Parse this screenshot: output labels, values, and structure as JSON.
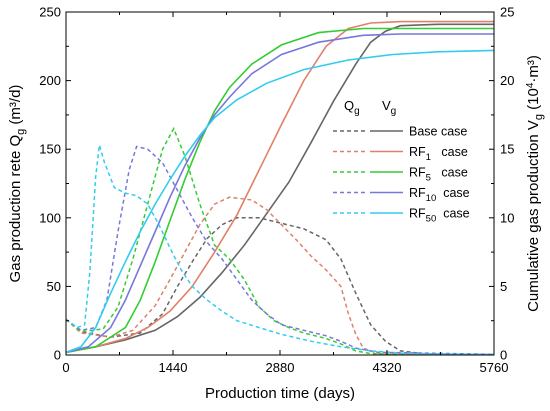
{
  "chart_data": {
    "type": "line",
    "xlabel": "Production time (days)",
    "ylabel_left": {
      "text": "Gas production rete Q",
      "sub": "g",
      "unit": " (m³/d)"
    },
    "ylabel_right": {
      "text": "Cumulative gas production V",
      "sub": "g",
      "unit_pre": " (10",
      "unit_sup": "4",
      "unit_post": "·m³)"
    },
    "xlim": [
      0,
      5760
    ],
    "ylim_left": [
      0,
      250
    ],
    "ylim_right": [
      0,
      25
    ],
    "x_ticks": [
      0,
      1440,
      2880,
      4320,
      5760
    ],
    "y_ticks_left": [
      0,
      50,
      100,
      150,
      200,
      250
    ],
    "y_ticks_right": [
      0,
      5,
      10,
      15,
      20,
      25
    ],
    "legend": {
      "header_q": {
        "main": "Q",
        "sub": "g"
      },
      "header_v": {
        "main": "V",
        "sub": "g"
      },
      "position": "right-middle"
    },
    "series": [
      {
        "name": "Base case",
        "label_main": "Base case",
        "label_sub": "",
        "label_suffix": "",
        "color": "#666666",
        "rate": [
          [
            0,
            26
          ],
          [
            200,
            17
          ],
          [
            600,
            13
          ],
          [
            1000,
            16
          ],
          [
            1300,
            30
          ],
          [
            1500,
            50
          ],
          [
            1700,
            68
          ],
          [
            1900,
            85
          ],
          [
            2100,
            95
          ],
          [
            2300,
            100
          ],
          [
            2600,
            100
          ],
          [
            2900,
            96
          ],
          [
            3200,
            92
          ],
          [
            3500,
            84
          ],
          [
            3700,
            70
          ],
          [
            3900,
            45
          ],
          [
            4100,
            22
          ],
          [
            4300,
            10
          ],
          [
            4500,
            3
          ],
          [
            4800,
            1
          ],
          [
            5200,
            0.5
          ],
          [
            5760,
            0.3
          ]
        ],
        "cum": [
          [
            0,
            0.2
          ],
          [
            400,
            0.6
          ],
          [
            800,
            1.1
          ],
          [
            1200,
            1.8
          ],
          [
            1500,
            2.8
          ],
          [
            1800,
            4.2
          ],
          [
            2100,
            6.0
          ],
          [
            2400,
            8.0
          ],
          [
            2700,
            10.3
          ],
          [
            3000,
            12.6
          ],
          [
            3300,
            15.5
          ],
          [
            3600,
            18.5
          ],
          [
            3900,
            21.2
          ],
          [
            4100,
            22.8
          ],
          [
            4300,
            23.6
          ],
          [
            4500,
            24.0
          ],
          [
            5000,
            24.1
          ],
          [
            5760,
            24.1
          ]
        ]
      },
      {
        "name": "RF1 case",
        "label_main": "RF",
        "label_sub": "1",
        "label_suffix": "   case",
        "color": "#e0806a",
        "rate": [
          [
            0,
            26
          ],
          [
            200,
            16
          ],
          [
            600,
            13
          ],
          [
            900,
            18
          ],
          [
            1200,
            36
          ],
          [
            1400,
            55
          ],
          [
            1600,
            75
          ],
          [
            1800,
            95
          ],
          [
            2000,
            110
          ],
          [
            2200,
            115
          ],
          [
            2500,
            113
          ],
          [
            2700,
            106
          ],
          [
            2900,
            95
          ],
          [
            3100,
            84
          ],
          [
            3300,
            72
          ],
          [
            3500,
            62
          ],
          [
            3700,
            50
          ],
          [
            3800,
            30
          ],
          [
            3900,
            15
          ],
          [
            4000,
            5
          ],
          [
            4200,
            1
          ],
          [
            4600,
            0.5
          ],
          [
            5760,
            0.3
          ]
        ],
        "cum": [
          [
            0,
            0.2
          ],
          [
            400,
            0.6
          ],
          [
            800,
            1.2
          ],
          [
            1100,
            2.0
          ],
          [
            1400,
            3.2
          ],
          [
            1700,
            5.0
          ],
          [
            2000,
            7.5
          ],
          [
            2300,
            10.2
          ],
          [
            2600,
            13.5
          ],
          [
            2900,
            16.8
          ],
          [
            3200,
            20.0
          ],
          [
            3500,
            22.5
          ],
          [
            3800,
            23.8
          ],
          [
            4100,
            24.2
          ],
          [
            4500,
            24.3
          ],
          [
            5760,
            24.3
          ]
        ]
      },
      {
        "name": "RF5 case",
        "label_main": "RF",
        "label_sub": "5",
        "label_suffix": "   case",
        "color": "#33cc33",
        "rate": [
          [
            0,
            26
          ],
          [
            200,
            17
          ],
          [
            500,
            19
          ],
          [
            700,
            35
          ],
          [
            900,
            70
          ],
          [
            1100,
            110
          ],
          [
            1300,
            150
          ],
          [
            1450,
            165
          ],
          [
            1600,
            145
          ],
          [
            1800,
            110
          ],
          [
            2000,
            80
          ],
          [
            2200,
            70
          ],
          [
            2400,
            55
          ],
          [
            2600,
            35
          ],
          [
            2800,
            25
          ],
          [
            3000,
            20
          ],
          [
            3200,
            16
          ],
          [
            3500,
            12
          ],
          [
            3700,
            8
          ],
          [
            3900,
            3
          ],
          [
            4100,
            1
          ],
          [
            4400,
            0.5
          ],
          [
            5760,
            0.3
          ]
        ],
        "cum": [
          [
            0,
            0.2
          ],
          [
            400,
            0.6
          ],
          [
            800,
            2.0
          ],
          [
            1000,
            4.0
          ],
          [
            1200,
            6.8
          ],
          [
            1400,
            9.8
          ],
          [
            1600,
            12.8
          ],
          [
            1800,
            15.5
          ],
          [
            2000,
            17.8
          ],
          [
            2200,
            19.5
          ],
          [
            2500,
            21.2
          ],
          [
            2900,
            22.6
          ],
          [
            3400,
            23.5
          ],
          [
            4000,
            23.8
          ],
          [
            4500,
            23.8
          ],
          [
            5760,
            23.8
          ]
        ]
      },
      {
        "name": "RF10 case",
        "label_main": "RF",
        "label_sub": "10",
        "label_suffix": "  case",
        "color": "#7777dd",
        "rate": [
          [
            0,
            26
          ],
          [
            200,
            18
          ],
          [
            400,
            20
          ],
          [
            550,
            40
          ],
          [
            700,
            90
          ],
          [
            850,
            135
          ],
          [
            950,
            152
          ],
          [
            1100,
            150
          ],
          [
            1300,
            140
          ],
          [
            1500,
            120
          ],
          [
            1700,
            100
          ],
          [
            1900,
            82
          ],
          [
            2100,
            70
          ],
          [
            2300,
            55
          ],
          [
            2500,
            40
          ],
          [
            2700,
            30
          ],
          [
            2900,
            22
          ],
          [
            3200,
            18
          ],
          [
            3500,
            14
          ],
          [
            3700,
            10
          ],
          [
            3900,
            5
          ],
          [
            4200,
            2
          ],
          [
            5760,
            0.5
          ]
        ],
        "cum": [
          [
            0,
            0.2
          ],
          [
            300,
            0.6
          ],
          [
            600,
            2.0
          ],
          [
            800,
            4.0
          ],
          [
            1000,
            6.5
          ],
          [
            1200,
            9.0
          ],
          [
            1400,
            11.5
          ],
          [
            1600,
            13.8
          ],
          [
            1800,
            15.8
          ],
          [
            2000,
            17.5
          ],
          [
            2200,
            18.8
          ],
          [
            2500,
            20.5
          ],
          [
            2900,
            21.9
          ],
          [
            3400,
            22.8
          ],
          [
            4000,
            23.3
          ],
          [
            4500,
            23.4
          ],
          [
            5760,
            23.4
          ]
        ]
      },
      {
        "name": "RF50 case",
        "label_main": "RF",
        "label_sub": "50",
        "label_suffix": "  case",
        "color": "#33ccee",
        "rate": [
          [
            0,
            26
          ],
          [
            150,
            20
          ],
          [
            250,
            22
          ],
          [
            320,
            60
          ],
          [
            400,
            130
          ],
          [
            450,
            153
          ],
          [
            520,
            140
          ],
          [
            650,
            122
          ],
          [
            800,
            118
          ],
          [
            950,
            116
          ],
          [
            1100,
            110
          ],
          [
            1250,
            95
          ],
          [
            1400,
            78
          ],
          [
            1550,
            62
          ],
          [
            1700,
            50
          ],
          [
            1900,
            40
          ],
          [
            2100,
            32
          ],
          [
            2300,
            25
          ],
          [
            2600,
            20
          ],
          [
            2900,
            15
          ],
          [
            3300,
            10
          ],
          [
            3700,
            6
          ],
          [
            4100,
            3
          ],
          [
            4600,
            1
          ],
          [
            5760,
            0.4
          ]
        ],
        "cum": [
          [
            0,
            0.2
          ],
          [
            200,
            0.6
          ],
          [
            400,
            2.0
          ],
          [
            600,
            4.5
          ],
          [
            800,
            6.8
          ],
          [
            1000,
            9.0
          ],
          [
            1200,
            11.0
          ],
          [
            1400,
            12.8
          ],
          [
            1600,
            14.5
          ],
          [
            1800,
            16.0
          ],
          [
            2000,
            17.3
          ],
          [
            2300,
            18.6
          ],
          [
            2700,
            19.8
          ],
          [
            3200,
            20.8
          ],
          [
            3800,
            21.5
          ],
          [
            4400,
            21.9
          ],
          [
            5000,
            22.1
          ],
          [
            5760,
            22.2
          ]
        ]
      }
    ]
  }
}
